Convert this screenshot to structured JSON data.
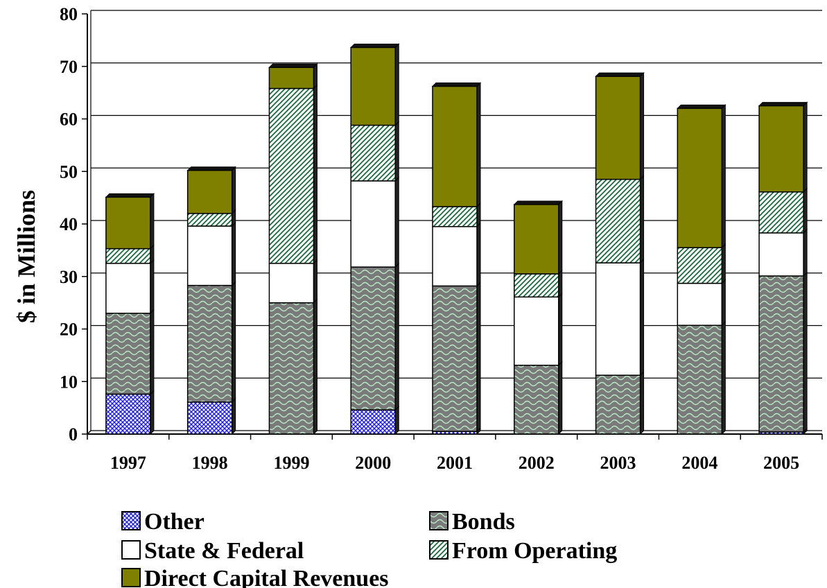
{
  "chart_data": {
    "type": "bar",
    "stacked": true,
    "title": "",
    "xlabel": "",
    "ylabel": "$ in Millions",
    "ylim": [
      0,
      80
    ],
    "yticks": [
      0,
      10,
      20,
      30,
      40,
      50,
      60,
      70,
      80
    ],
    "grid": true,
    "legend_position": "bottom",
    "categories": [
      "1997",
      "1998",
      "1999",
      "2000",
      "2001",
      "2002",
      "2003",
      "2004",
      "2005"
    ],
    "series": [
      {
        "name": "Other",
        "color": "#2020e0",
        "pattern": "crosshatch",
        "values": [
          7.6,
          6.1,
          0,
          4.6,
          0.5,
          0,
          0,
          0,
          0.4
        ]
      },
      {
        "name": "Bonds",
        "color": "#808080",
        "pattern": "wave",
        "values": [
          15.4,
          22.2,
          25.0,
          27.2,
          27.7,
          13.1,
          11.2,
          20.7,
          29.7
        ]
      },
      {
        "name": "State & Federal",
        "color": "#ffffff",
        "pattern": "solid",
        "values": [
          9.5,
          11.3,
          7.5,
          16.4,
          11.3,
          13.0,
          21.4,
          8.0,
          8.2
        ]
      },
      {
        "name": "From Operating",
        "color": "#1a6b3a",
        "pattern": "diagonal",
        "values": [
          2.8,
          2.4,
          33.3,
          10.6,
          3.8,
          4.4,
          15.9,
          6.8,
          7.8
        ]
      },
      {
        "name": "Direct Capital Revenues",
        "color": "#808000",
        "pattern": "solid",
        "values": [
          9.8,
          8.2,
          4.0,
          14.8,
          22.9,
          13.2,
          19.6,
          26.5,
          16.4
        ]
      }
    ]
  },
  "legend_items": [
    {
      "label": "Other",
      "icon": "crosshatch-square-icon"
    },
    {
      "label": "Bonds",
      "icon": "wave-square-icon"
    },
    {
      "label": "State & Federal",
      "icon": "white-square-icon"
    },
    {
      "label": "From Operating",
      "icon": "diagonal-square-icon"
    },
    {
      "label": "Direct Capital Revenues",
      "icon": "olive-square-icon"
    }
  ]
}
